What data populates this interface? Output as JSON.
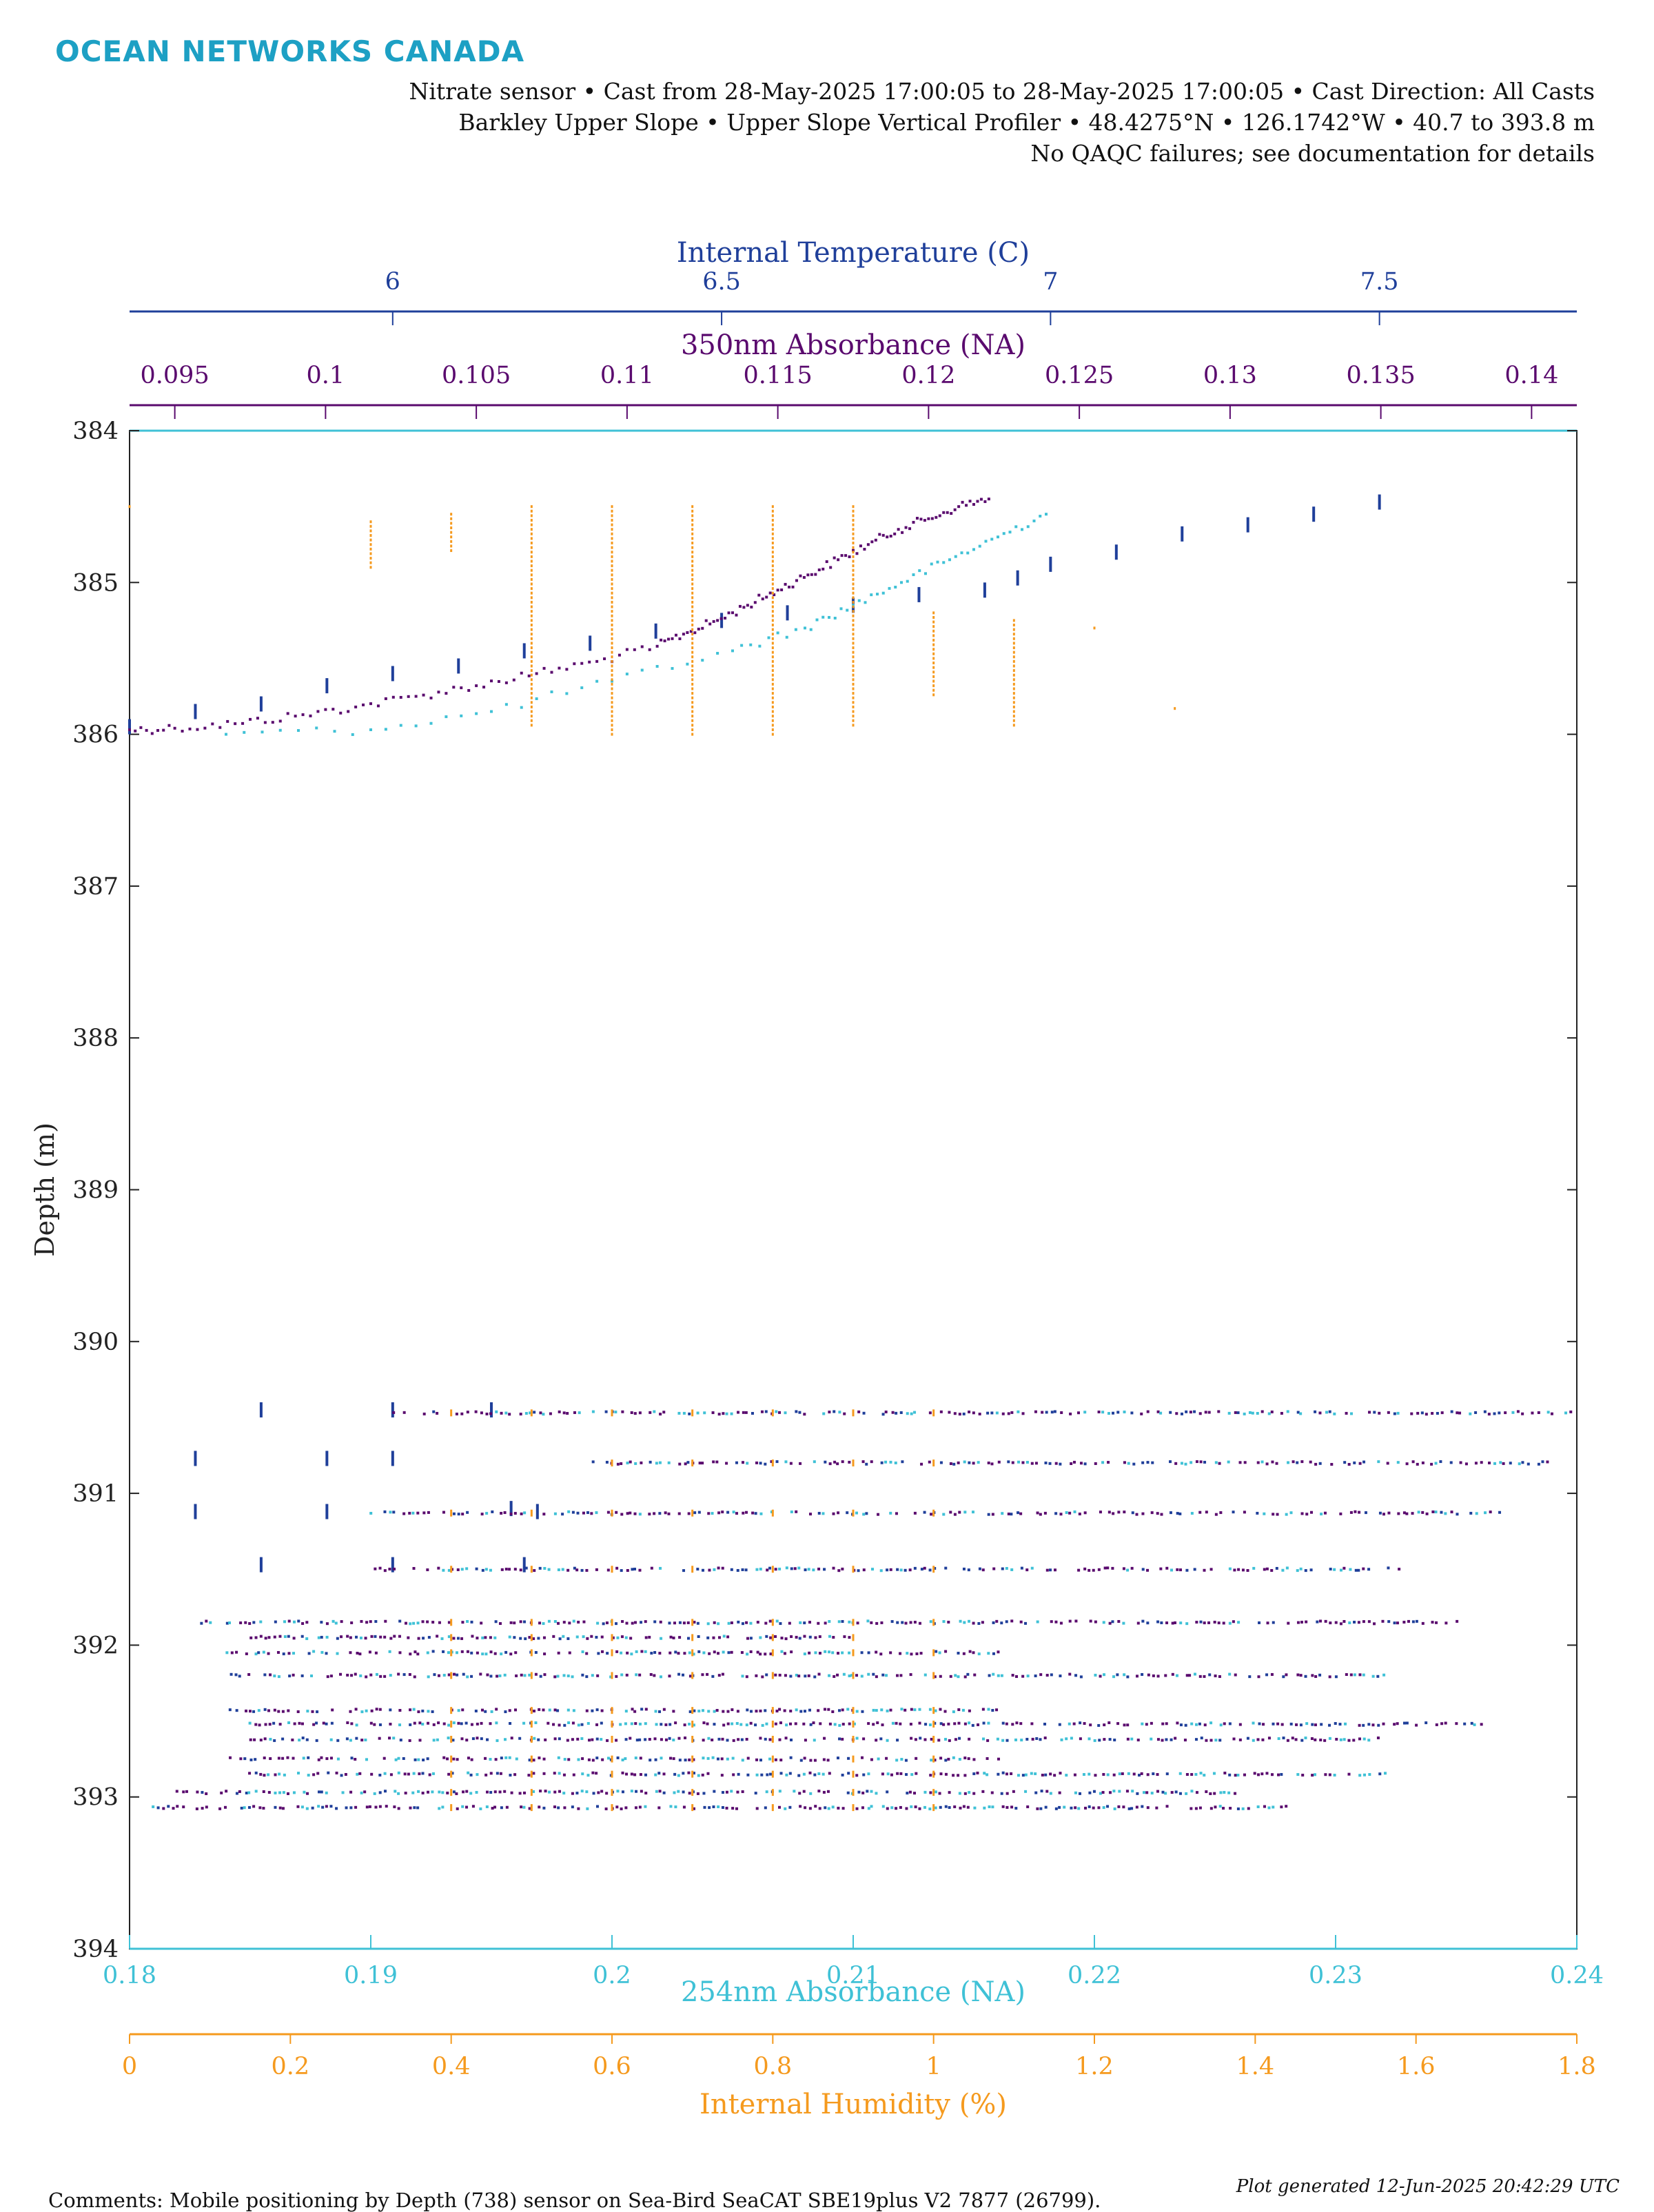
{
  "header": {
    "brand": "OCEAN NETWORKS CANADA",
    "line1": "Nitrate sensor • Cast from 28-May-2025 17:00:05 to 28-May-2025 17:00:05 • Cast Direction: All Casts",
    "line2": "Barkley Upper Slope • Upper Slope Vertical Profiler • 48.4275°N • 126.1742°W • 40.7 to 393.8 m",
    "line3": "No QAQC failures; see documentation for details"
  },
  "footer": {
    "comments": "Comments: Mobile positioning by Depth (738) sensor on Sea-Bird SeaCAT SBE19plus V2 7877 (26799).",
    "generated": "Plot generated 12-Jun-2025 20:42:29 UTC"
  },
  "colors": {
    "temperature": "#1f3f9a",
    "absorbance350": "#5a0a6e",
    "absorbance254": "#3fc1d6",
    "humidity": "#f59a1e",
    "brand": "#1da0c4"
  },
  "chart_data": {
    "type": "scatter",
    "ylabel": "Depth (m)",
    "ylim": [
      394,
      384
    ],
    "yticks": [
      384,
      385,
      386,
      387,
      388,
      389,
      390,
      391,
      392,
      393,
      394
    ],
    "axes": {
      "temperature": {
        "label": "Internal Temperature (C)",
        "lim": [
          5.6,
          7.8
        ],
        "ticks": [
          6,
          6.5,
          7,
          7.5
        ],
        "ticklabels": [
          "6",
          "6.5",
          "7",
          "7.5"
        ],
        "position": "top"
      },
      "absorbance350": {
        "label": "350nm Absorbance (NA)",
        "lim": [
          0.0935,
          0.1415
        ],
        "ticks": [
          0.095,
          0.1,
          0.105,
          0.11,
          0.115,
          0.12,
          0.125,
          0.13,
          0.135,
          0.14
        ],
        "ticklabels": [
          "0.095",
          "0.1",
          "0.105",
          "0.11",
          "0.115",
          "0.12",
          "0.125",
          "0.13",
          "0.135",
          "0.14"
        ],
        "position": "top"
      },
      "absorbance254": {
        "label": "254nm Absorbance (NA)",
        "lim": [
          0.18,
          0.24
        ],
        "ticks": [
          0.18,
          0.19,
          0.2,
          0.21,
          0.22,
          0.23,
          0.24
        ],
        "ticklabels": [
          "0.18",
          "0.19",
          "0.2",
          "0.21",
          "0.22",
          "0.23",
          "0.24"
        ],
        "position": "bottom"
      },
      "humidity": {
        "label": "Internal Humidity (%)",
        "lim": [
          0,
          1.8
        ],
        "ticks": [
          0,
          0.2,
          0.4,
          0.6,
          0.8,
          1,
          1.2,
          1.4,
          1.6,
          1.8
        ],
        "ticklabels": [
          "0",
          "0.2",
          "0.4",
          "0.6",
          "0.8",
          "1",
          "1.2",
          "1.4",
          "1.6",
          "1.8"
        ],
        "position": "bottom"
      }
    },
    "series": [
      {
        "name": "Internal Temperature (C)",
        "axis": "temperature",
        "points": [
          [
            5.6,
            385.95
          ],
          [
            5.7,
            385.85
          ],
          [
            5.8,
            385.8
          ],
          [
            5.9,
            385.68
          ],
          [
            6.0,
            385.6
          ],
          [
            6.1,
            385.55
          ],
          [
            6.2,
            385.45
          ],
          [
            6.3,
            385.4
          ],
          [
            6.4,
            385.32
          ],
          [
            6.5,
            385.25
          ],
          [
            6.6,
            385.2
          ],
          [
            6.7,
            385.15
          ],
          [
            6.8,
            385.08
          ],
          [
            6.9,
            385.05
          ],
          [
            6.95,
            384.97
          ],
          [
            7.0,
            384.88
          ],
          [
            7.1,
            384.8
          ],
          [
            7.2,
            384.68
          ],
          [
            7.3,
            384.62
          ],
          [
            7.4,
            384.55
          ],
          [
            7.5,
            384.47
          ],
          [
            5.8,
            390.45
          ],
          [
            6.0,
            390.45
          ],
          [
            5.7,
            390.77
          ],
          [
            5.9,
            390.77
          ],
          [
            6.0,
            390.77
          ],
          [
            5.7,
            391.12
          ],
          [
            5.9,
            391.12
          ],
          [
            5.8,
            391.47
          ],
          [
            6.0,
            391.47
          ],
          [
            6.15,
            390.45
          ],
          [
            6.2,
            391.47
          ],
          [
            6.22,
            391.12
          ],
          [
            6.18,
            391.1
          ]
        ]
      },
      {
        "name": "350nm Absorbance (NA)",
        "axis": "absorbance350",
        "points": [
          [
            0.0935,
            385.97
          ],
          [
            0.095,
            385.96
          ],
          [
            0.097,
            385.93
          ],
          [
            0.099,
            385.88
          ],
          [
            0.101,
            385.82
          ],
          [
            0.103,
            385.75
          ],
          [
            0.105,
            385.68
          ],
          [
            0.107,
            385.6
          ],
          [
            0.109,
            385.52
          ],
          [
            0.111,
            385.42
          ],
          [
            0.112,
            385.33
          ],
          [
            0.113,
            385.25
          ],
          [
            0.114,
            385.15
          ],
          [
            0.115,
            385.05
          ],
          [
            0.116,
            384.95
          ],
          [
            0.117,
            384.85
          ],
          [
            0.118,
            384.75
          ],
          [
            0.119,
            384.65
          ],
          [
            0.12,
            384.58
          ],
          [
            0.121,
            384.5
          ],
          [
            0.122,
            384.45
          ]
        ]
      },
      {
        "name": "254nm Absorbance (NA)",
        "axis": "absorbance254",
        "points": [
          [
            0.184,
            386.0
          ],
          [
            0.19,
            385.97
          ],
          [
            0.195,
            385.85
          ],
          [
            0.2,
            385.65
          ],
          [
            0.205,
            385.45
          ],
          [
            0.208,
            385.3
          ],
          [
            0.21,
            385.15
          ],
          [
            0.212,
            385.0
          ],
          [
            0.214,
            384.85
          ],
          [
            0.216,
            384.7
          ],
          [
            0.218,
            384.55
          ]
        ]
      },
      {
        "name": "Internal Humidity (%)",
        "axis": "humidity",
        "columns": [
          {
            "x": 0.3,
            "ymin": 384.6,
            "ymax": 384.9
          },
          {
            "x": 0.4,
            "ymin": 384.55,
            "ymax": 384.8
          },
          {
            "x": 0.5,
            "ymin": 384.5,
            "ymax": 385.95
          },
          {
            "x": 0.6,
            "ymin": 384.5,
            "ymax": 386.0
          },
          {
            "x": 0.7,
            "ymin": 384.5,
            "ymax": 386.0
          },
          {
            "x": 0.8,
            "ymin": 384.5,
            "ymax": 386.0
          },
          {
            "x": 0.9,
            "ymin": 384.5,
            "ymax": 385.95
          },
          {
            "x": 1.0,
            "ymin": 385.2,
            "ymax": 385.75
          },
          {
            "x": 1.1,
            "ymin": 385.25,
            "ymax": 385.95
          }
        ],
        "points": [
          [
            1.2,
            385.3
          ],
          [
            1.3,
            385.83
          ],
          [
            0.0,
            384.5
          ]
        ]
      }
    ],
    "depth_bands": [
      {
        "depth": 390.47,
        "x254": [
          0.191,
          0.24
        ]
      },
      {
        "depth": 390.8,
        "x254": [
          0.199,
          0.239
        ]
      },
      {
        "depth": 391.13,
        "x254": [
          0.19,
          0.237
        ]
      },
      {
        "depth": 391.5,
        "x254": [
          0.19,
          0.233
        ]
      },
      {
        "depth": 391.85,
        "x254": [
          0.183,
          0.235
        ]
      },
      {
        "depth": 391.95,
        "x254": [
          0.185,
          0.21
        ]
      },
      {
        "depth": 392.05,
        "x254": [
          0.184,
          0.216
        ]
      },
      {
        "depth": 392.2,
        "x254": [
          0.184,
          0.232
        ]
      },
      {
        "depth": 392.43,
        "x254": [
          0.184,
          0.216
        ]
      },
      {
        "depth": 392.52,
        "x254": [
          0.185,
          0.236
        ]
      },
      {
        "depth": 392.62,
        "x254": [
          0.185,
          0.232
        ]
      },
      {
        "depth": 392.75,
        "x254": [
          0.184,
          0.216
        ]
      },
      {
        "depth": 392.85,
        "x254": [
          0.185,
          0.232
        ]
      },
      {
        "depth": 392.97,
        "x254": [
          0.182,
          0.226
        ]
      },
      {
        "depth": 393.07,
        "x254": [
          0.181,
          0.228
        ]
      }
    ]
  }
}
